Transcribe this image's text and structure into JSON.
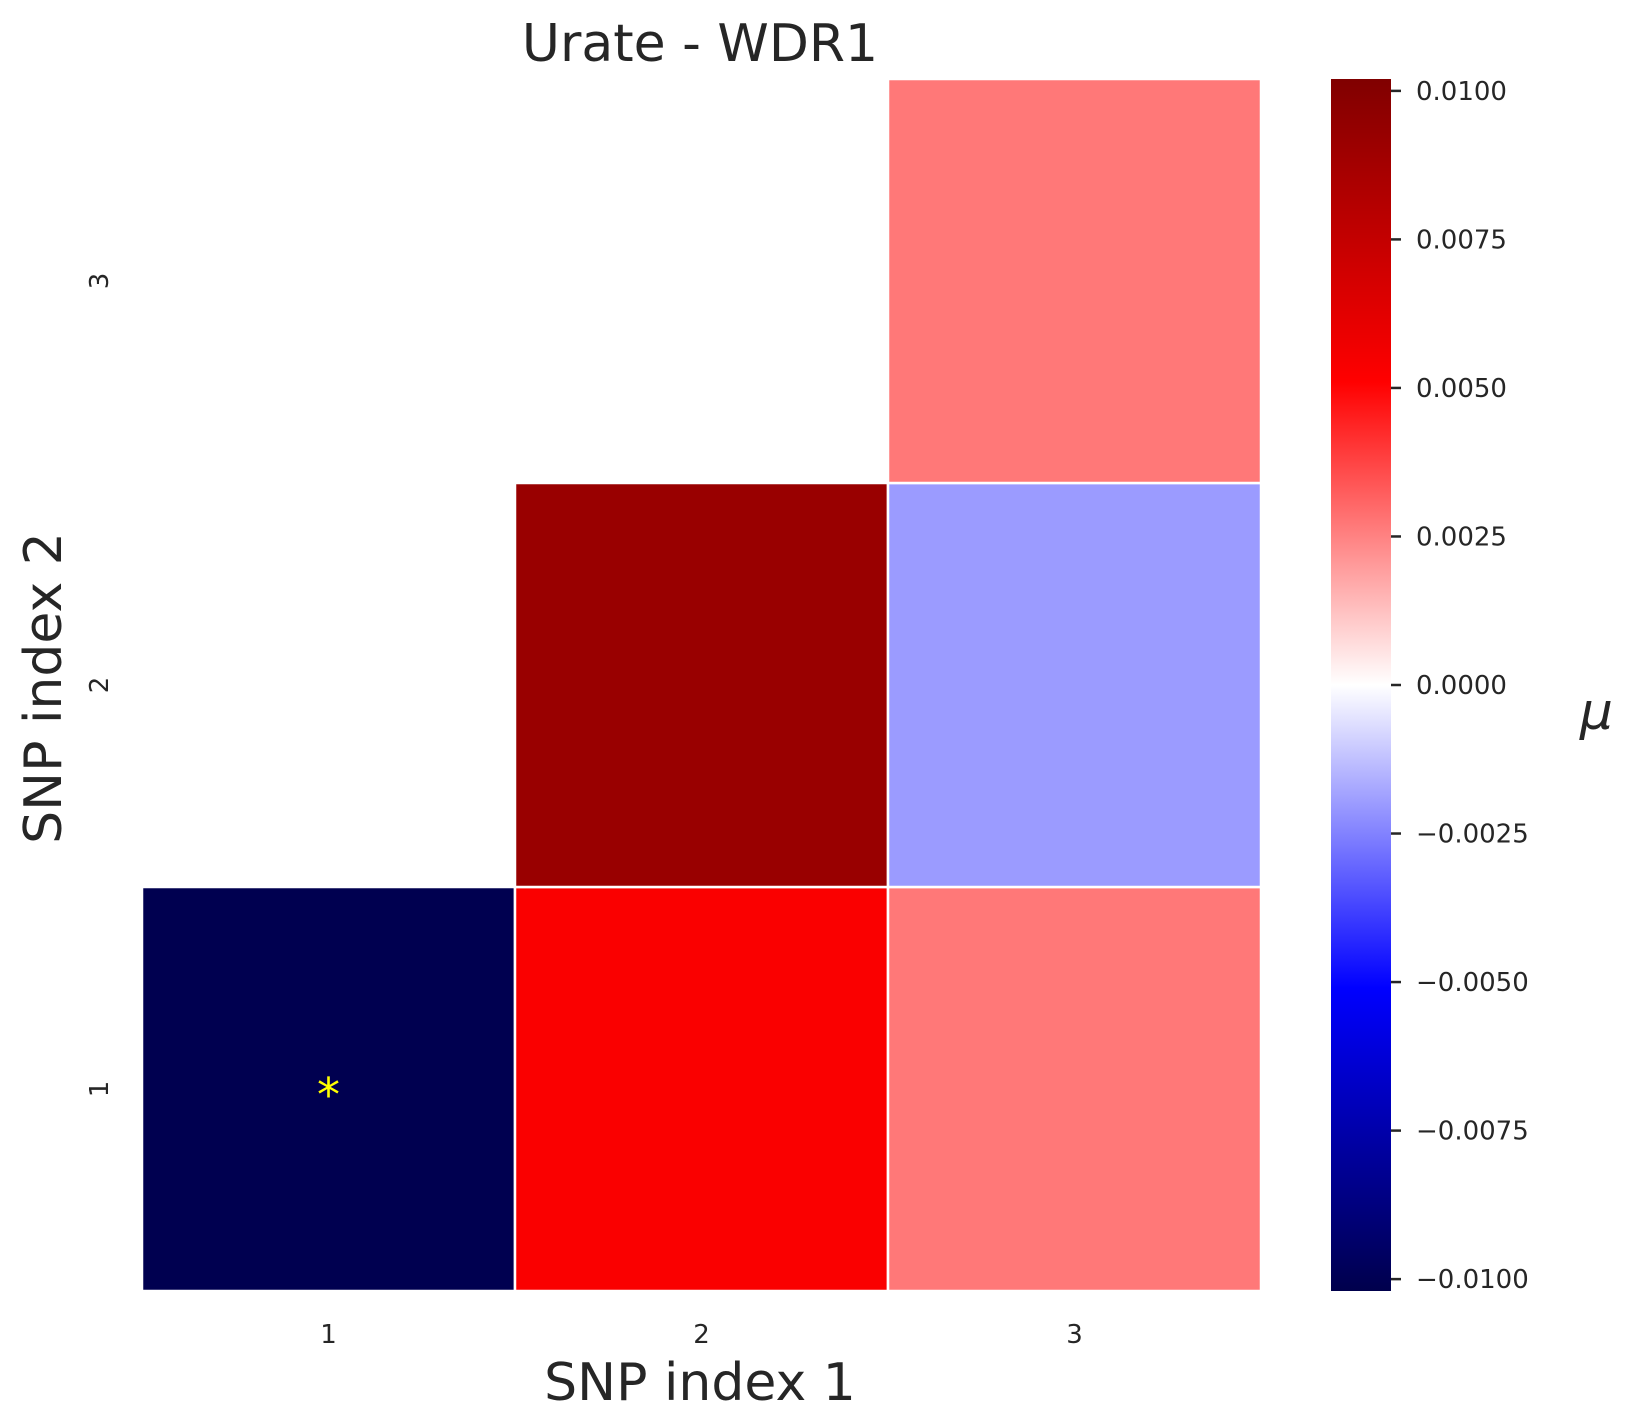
{
  "chart_data": {
    "type": "heatmap",
    "title": "Urate - WDR1",
    "xlabel": "SNP index 1",
    "ylabel": "SNP index 2",
    "x_categories": [
      "1",
      "2",
      "3"
    ],
    "y_categories": [
      "1",
      "2",
      "3"
    ],
    "cells": [
      {
        "x": "1",
        "y": "1",
        "value": -0.0101,
        "annotation": "*"
      },
      {
        "x": "2",
        "y": "1",
        "value": 0.0053,
        "annotation": ""
      },
      {
        "x": "3",
        "y": "1",
        "value": 0.0027,
        "annotation": ""
      },
      {
        "x": "2",
        "y": "2",
        "value": 0.0092,
        "annotation": ""
      },
      {
        "x": "3",
        "y": "2",
        "value": -0.002,
        "annotation": ""
      },
      {
        "x": "3",
        "y": "3",
        "value": 0.0027,
        "annotation": ""
      }
    ],
    "colorbar": {
      "label": "μ",
      "vmin": -0.0102,
      "vmax": 0.0102,
      "ticks": [
        0.01,
        0.0075,
        0.005,
        0.0025,
        0.0,
        -0.0025,
        -0.005,
        -0.0075,
        -0.01
      ],
      "tick_labels": [
        "0.0100",
        "0.0075",
        "0.0050",
        "0.0025",
        "0.0000",
        "−0.0025",
        "−0.0050",
        "−0.0075",
        "−0.0100"
      ],
      "colormap": "seismic",
      "colors": [
        "#00004c",
        "#0000ff",
        "#ffffff",
        "#ff0000",
        "#800000"
      ]
    },
    "grid": false,
    "annotation_color": "#ffff00"
  }
}
